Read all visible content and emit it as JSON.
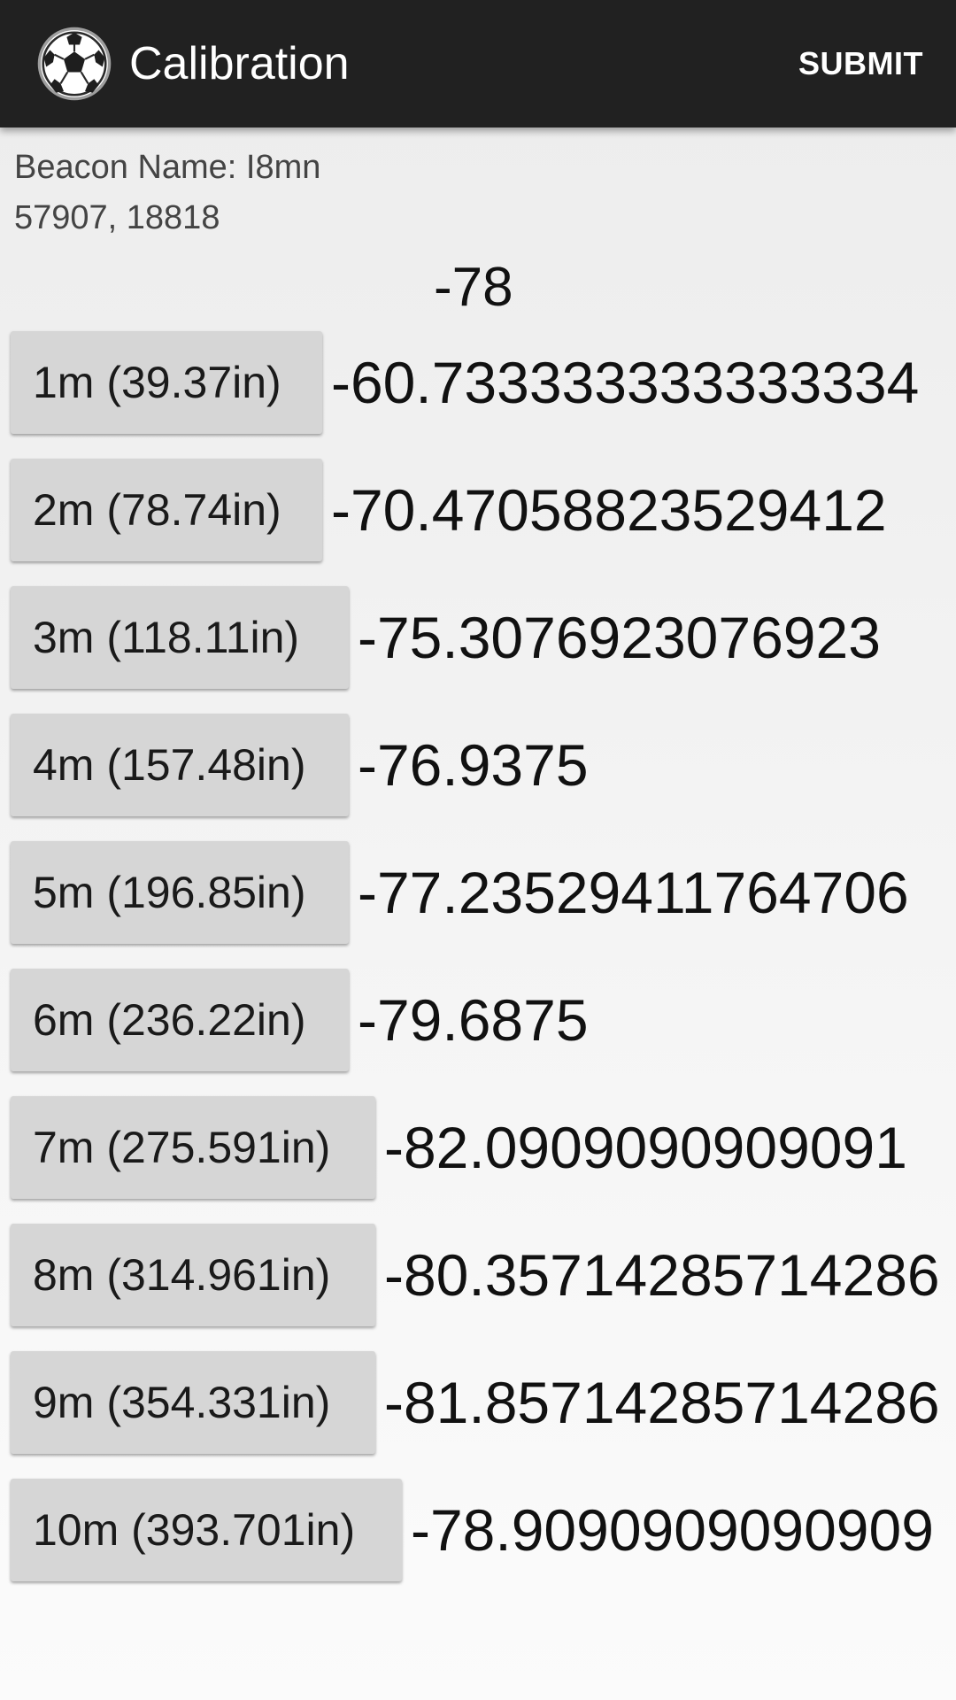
{
  "appbar": {
    "title": "Calibration",
    "submit_label": "SUBMIT",
    "logo_icon": "soccer-ball-icon"
  },
  "beacon": {
    "name_line": "Beacon Name: I8mn",
    "ids_line": "57907, 18818"
  },
  "current_reading": "-78",
  "calibration_rows": [
    {
      "button_label": "1m (39.37in)",
      "reading": "-60.733333333333334"
    },
    {
      "button_label": "2m (78.74in)",
      "reading": "-70.47058823529412"
    },
    {
      "button_label": "3m (118.11in)",
      "reading": "-75.3076923076923"
    },
    {
      "button_label": "4m (157.48in)",
      "reading": "-76.9375"
    },
    {
      "button_label": "5m (196.85in)",
      "reading": "-77.23529411764706"
    },
    {
      "button_label": "6m (236.22in)",
      "reading": "-79.6875"
    },
    {
      "button_label": "7m (275.591in)",
      "reading": "-82.0909090909091"
    },
    {
      "button_label": "8m (314.961in)",
      "reading": "-80.35714285714286"
    },
    {
      "button_label": "9m (354.331in)",
      "reading": "-81.85714285714286"
    },
    {
      "button_label": "10m (393.701in)",
      "reading": "-78.9090909090909"
    }
  ]
}
